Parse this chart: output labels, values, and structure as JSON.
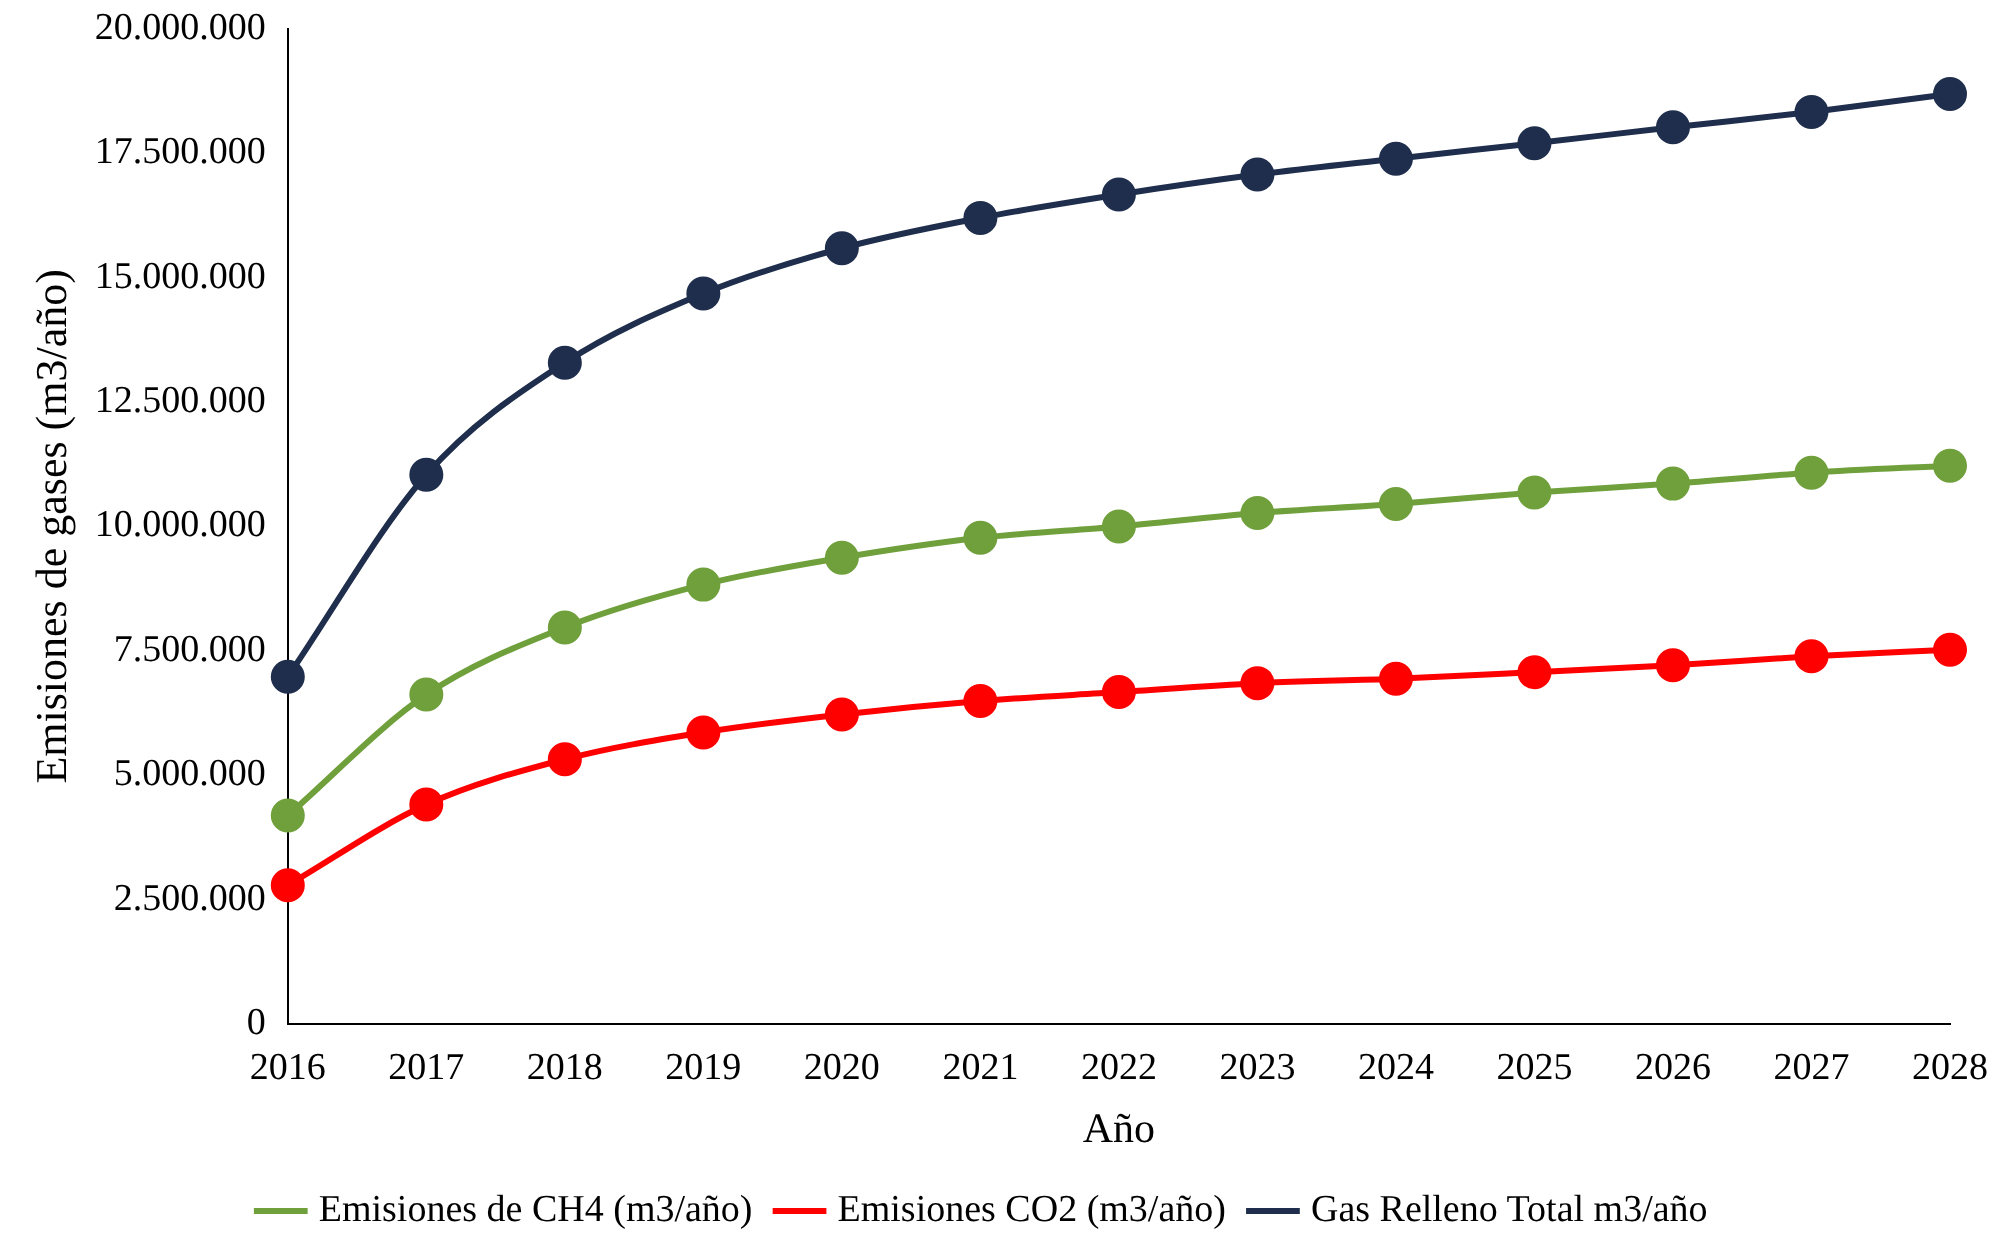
{
  "chart_data": {
    "type": "line",
    "xlabel": "Año",
    "ylabel": "Emisiones de gases (m3/año)",
    "categories": [
      "2016",
      "2017",
      "2018",
      "2019",
      "2020",
      "2021",
      "2022",
      "2023",
      "2024",
      "2025",
      "2026",
      "2027",
      "2028"
    ],
    "series": [
      {
        "name": "Emisiones de CH4 (m3/año)",
        "color": "#70a03c",
        "values": [
          4190000,
          6620000,
          7970000,
          8830000,
          9370000,
          9770000,
          10000000,
          10270000,
          10450000,
          10680000,
          10860000,
          11080000,
          11220000
        ]
      },
      {
        "name": "Emisiones CO2 (m3/año)",
        "color": "#ff0000",
        "values": [
          2790000,
          4410000,
          5320000,
          5860000,
          6220000,
          6490000,
          6670000,
          6850000,
          6940000,
          7070000,
          7210000,
          7390000,
          7520000
        ]
      },
      {
        "name": "Gas Relleno Total m3/año",
        "color": "#1f2e4c",
        "values": [
          6980000,
          11040000,
          13290000,
          14680000,
          15590000,
          16200000,
          16670000,
          17070000,
          17390000,
          17700000,
          18020000,
          18330000,
          18690000
        ]
      }
    ],
    "ylim": [
      0,
      20000000
    ],
    "yticks": [
      0,
      {
        "value": 2500000,
        "label": "2.500.000"
      },
      {
        "value": 5000000,
        "label": "5.000.000"
      },
      {
        "value": 7500000,
        "label": "7.500.000"
      },
      {
        "value": 10000000,
        "label": "10.000.000"
      },
      {
        "value": 12500000,
        "label": "12.500.000"
      },
      {
        "value": 15000000,
        "label": "15.000.000"
      },
      {
        "value": 17500000,
        "label": "17.500.000"
      },
      {
        "value": 20000000,
        "label": "20.000.000"
      }
    ],
    "grid": false,
    "legend": "bottom",
    "marker": "circle",
    "line_style": "solid"
  }
}
